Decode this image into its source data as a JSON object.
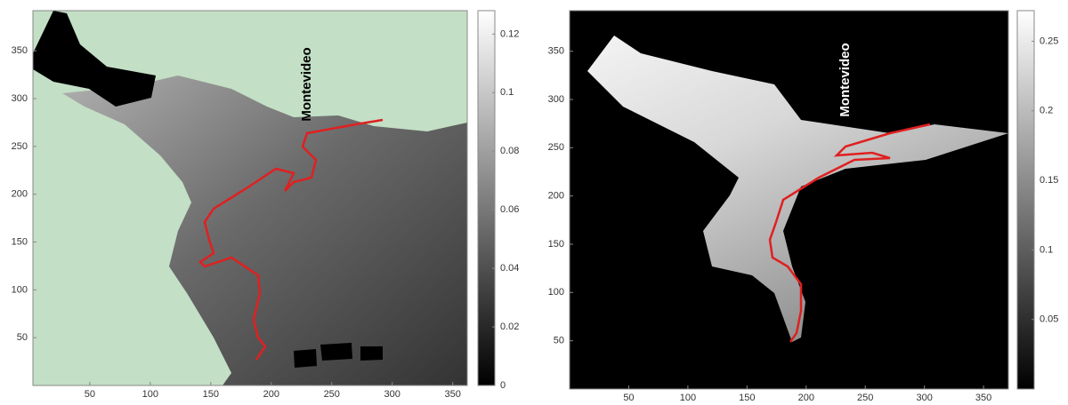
{
  "chart_data": [
    {
      "type": "heatmap",
      "annotation": "Montevideo",
      "xlim": [
        3,
        362
      ],
      "ylim": [
        0,
        392
      ],
      "xticks": [
        50,
        100,
        150,
        200,
        250,
        300,
        350
      ],
      "yticks": [
        50,
        100,
        150,
        200,
        250,
        300,
        350
      ],
      "colorbar": {
        "lim": [
          0,
          0.128
        ],
        "ticks": [
          0,
          0.02,
          0.04,
          0.06,
          0.08,
          0.1,
          0.12
        ]
      }
    },
    {
      "type": "heatmap",
      "annotation": "Montevideo",
      "xlim": [
        0,
        371
      ],
      "ylim": [
        0,
        392
      ],
      "xticks": [
        50,
        100,
        150,
        200,
        250,
        300,
        350
      ],
      "yticks": [
        50,
        100,
        150,
        200,
        250,
        300,
        350
      ],
      "colorbar": {
        "lim": [
          0,
          0.272
        ],
        "ticks": [
          0.05,
          0.1,
          0.15,
          0.2,
          0.25
        ]
      }
    }
  ]
}
